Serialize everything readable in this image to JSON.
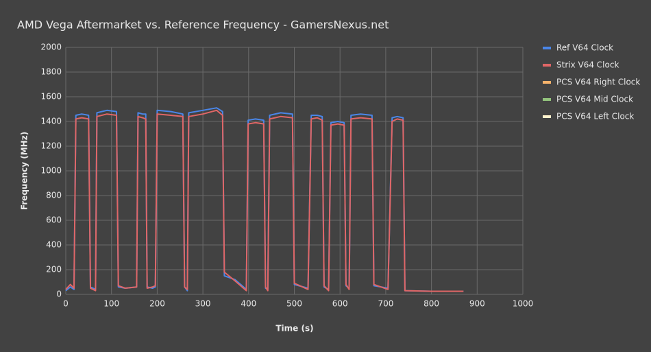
{
  "chart_data": {
    "type": "line",
    "title": "AMD Vega Aftermarket vs. Reference Frequency - GamersNexus.net",
    "x_label": "Time (s)",
    "y_label": "Frequency (MHz)",
    "xlim": [
      0,
      1000
    ],
    "xticks": [
      0,
      100,
      200,
      300,
      400,
      500,
      600,
      700,
      800,
      900,
      1000
    ],
    "ylim": [
      0,
      2000
    ],
    "yticks": [
      0,
      200,
      400,
      600,
      800,
      1000,
      1200,
      1400,
      1600,
      1800,
      2000
    ],
    "grid": true,
    "legend": "right",
    "x": [
      0,
      10,
      18,
      22,
      35,
      50,
      54,
      65,
      68,
      90,
      111,
      115,
      130,
      155,
      158,
      168,
      175,
      178,
      190,
      196,
      200,
      230,
      256,
      260,
      266,
      269,
      300,
      330,
      343,
      347,
      370,
      395,
      399,
      415,
      433,
      437,
      442,
      446,
      470,
      496,
      500,
      530,
      537,
      550,
      561,
      565,
      575,
      580,
      595,
      609,
      613,
      620,
      624,
      645,
      670,
      674,
      705,
      714,
      725,
      738,
      742,
      800,
      870
    ],
    "series": [
      {
        "name": "Ref V64 Clock",
        "color": "#4a86e8",
        "values": [
          30,
          60,
          40,
          1450,
          1460,
          1450,
          60,
          40,
          1470,
          1490,
          1480,
          60,
          50,
          60,
          1470,
          1460,
          1460,
          60,
          50,
          60,
          1490,
          1480,
          1460,
          60,
          30,
          1470,
          1490,
          1510,
          1480,
          150,
          120,
          40,
          1410,
          1420,
          1410,
          50,
          40,
          1450,
          1470,
          1460,
          80,
          50,
          1450,
          1450,
          1440,
          60,
          40,
          1390,
          1400,
          1390,
          70,
          50,
          1450,
          1460,
          1450,
          70,
          50,
          1430,
          1440,
          1430,
          30,
          25,
          25
        ]
      },
      {
        "name": "Strix V64 Clock",
        "color": "#e06666",
        "values": [
          40,
          80,
          50,
          1420,
          1430,
          1420,
          50,
          30,
          1440,
          1460,
          1450,
          70,
          50,
          60,
          1440,
          1430,
          1420,
          50,
          60,
          70,
          1460,
          1450,
          1440,
          60,
          40,
          1440,
          1460,
          1490,
          1450,
          180,
          110,
          30,
          1380,
          1390,
          1380,
          60,
          30,
          1420,
          1440,
          1430,
          90,
          40,
          1420,
          1430,
          1410,
          70,
          30,
          1370,
          1380,
          1370,
          80,
          40,
          1420,
          1430,
          1420,
          80,
          40,
          1400,
          1420,
          1410,
          30,
          25,
          25
        ]
      },
      {
        "name": "PCS V64 Right Clock",
        "color": "#f6b26b",
        "values": [
          null,
          null,
          null,
          null,
          null,
          null,
          null,
          null,
          null,
          null,
          null,
          null,
          null,
          null,
          null,
          null,
          null,
          null,
          null,
          null,
          null,
          null,
          null,
          null,
          null,
          null,
          null,
          null,
          null,
          null,
          null,
          null,
          null,
          null,
          null,
          null,
          null,
          null,
          null,
          null,
          null,
          null,
          null,
          null,
          null,
          null,
          null,
          null,
          null,
          null,
          null,
          null,
          null,
          null,
          null,
          null,
          null,
          null,
          null,
          null,
          null,
          null,
          null
        ]
      },
      {
        "name": "PCS V64 Mid Clock",
        "color": "#93c47d",
        "values": [
          null,
          null,
          null,
          null,
          null,
          null,
          null,
          null,
          null,
          null,
          null,
          null,
          null,
          null,
          null,
          null,
          null,
          null,
          null,
          null,
          null,
          null,
          null,
          null,
          null,
          null,
          null,
          null,
          null,
          null,
          null,
          null,
          null,
          null,
          null,
          null,
          null,
          null,
          null,
          null,
          null,
          null,
          null,
          null,
          null,
          null,
          null,
          null,
          null,
          null,
          null,
          null,
          null,
          null,
          null,
          null,
          null,
          null,
          null,
          null,
          null,
          null,
          null
        ]
      },
      {
        "name": "PCS V64 Left Clock",
        "color": "#fff2cc",
        "values": [
          null,
          null,
          null,
          null,
          null,
          null,
          null,
          null,
          null,
          null,
          null,
          null,
          null,
          null,
          null,
          null,
          null,
          null,
          null,
          null,
          null,
          null,
          null,
          null,
          null,
          null,
          null,
          null,
          null,
          null,
          null,
          null,
          null,
          null,
          null,
          null,
          null,
          null,
          null,
          null,
          null,
          null,
          null,
          null,
          null,
          null,
          null,
          null,
          null,
          null,
          null,
          null,
          null,
          null,
          null,
          null,
          null,
          null,
          null,
          null,
          null,
          null,
          null
        ]
      }
    ]
  }
}
